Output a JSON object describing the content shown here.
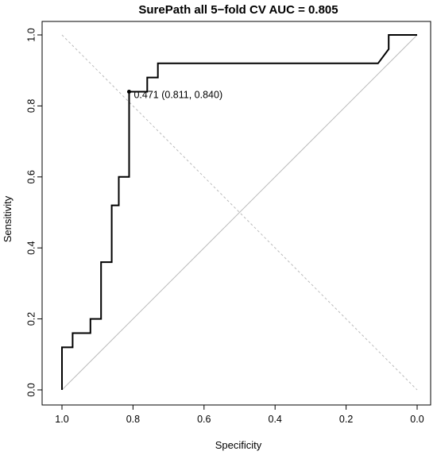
{
  "chart_data": {
    "type": "line",
    "title": "SurePath all 5−fold CV AUC = 0.805",
    "xlabel": "Specificity",
    "ylabel": "Sensitivity",
    "xlim": [
      1.0,
      0.0
    ],
    "ylim": [
      0.0,
      1.0
    ],
    "x_ticks": [
      "1.0",
      "0.8",
      "0.6",
      "0.4",
      "0.2",
      "0.0"
    ],
    "y_ticks": [
      "0.0",
      "0.2",
      "0.4",
      "0.6",
      "0.8",
      "1.0"
    ],
    "series": [
      {
        "x": [
          1.0,
          1.0,
          0.97,
          0.97,
          0.92,
          0.92,
          0.89,
          0.89,
          0.86,
          0.86,
          0.84,
          0.84,
          0.811,
          0.811,
          0.811,
          0.76,
          0.76,
          0.73,
          0.73,
          0.11,
          0.08,
          0.08,
          0.0
        ],
        "y": [
          0.0,
          0.12,
          0.12,
          0.16,
          0.16,
          0.2,
          0.2,
          0.36,
          0.36,
          0.52,
          0.52,
          0.6,
          0.6,
          0.84,
          0.84,
          0.84,
          0.88,
          0.88,
          0.92,
          0.92,
          0.96,
          1.0,
          1.0
        ]
      }
    ],
    "reference_lines": [
      {
        "x": [
          1.0,
          0.0
        ],
        "y": [
          0.0,
          1.0
        ],
        "color": "#bbbbbb",
        "style": "solid"
      },
      {
        "x": [
          1.0,
          0.0
        ],
        "y": [
          1.0,
          0.0
        ],
        "color": "#bbbbbb",
        "style": "dashed"
      }
    ],
    "threshold_point": {
      "x": 0.811,
      "y": 0.84,
      "label": "0.471 (0.811, 0.840)"
    },
    "grid": false,
    "legend": "none",
    "colors": {
      "curve": "#000000",
      "reference": "#bbbbbb",
      "frame": "#000000"
    }
  }
}
